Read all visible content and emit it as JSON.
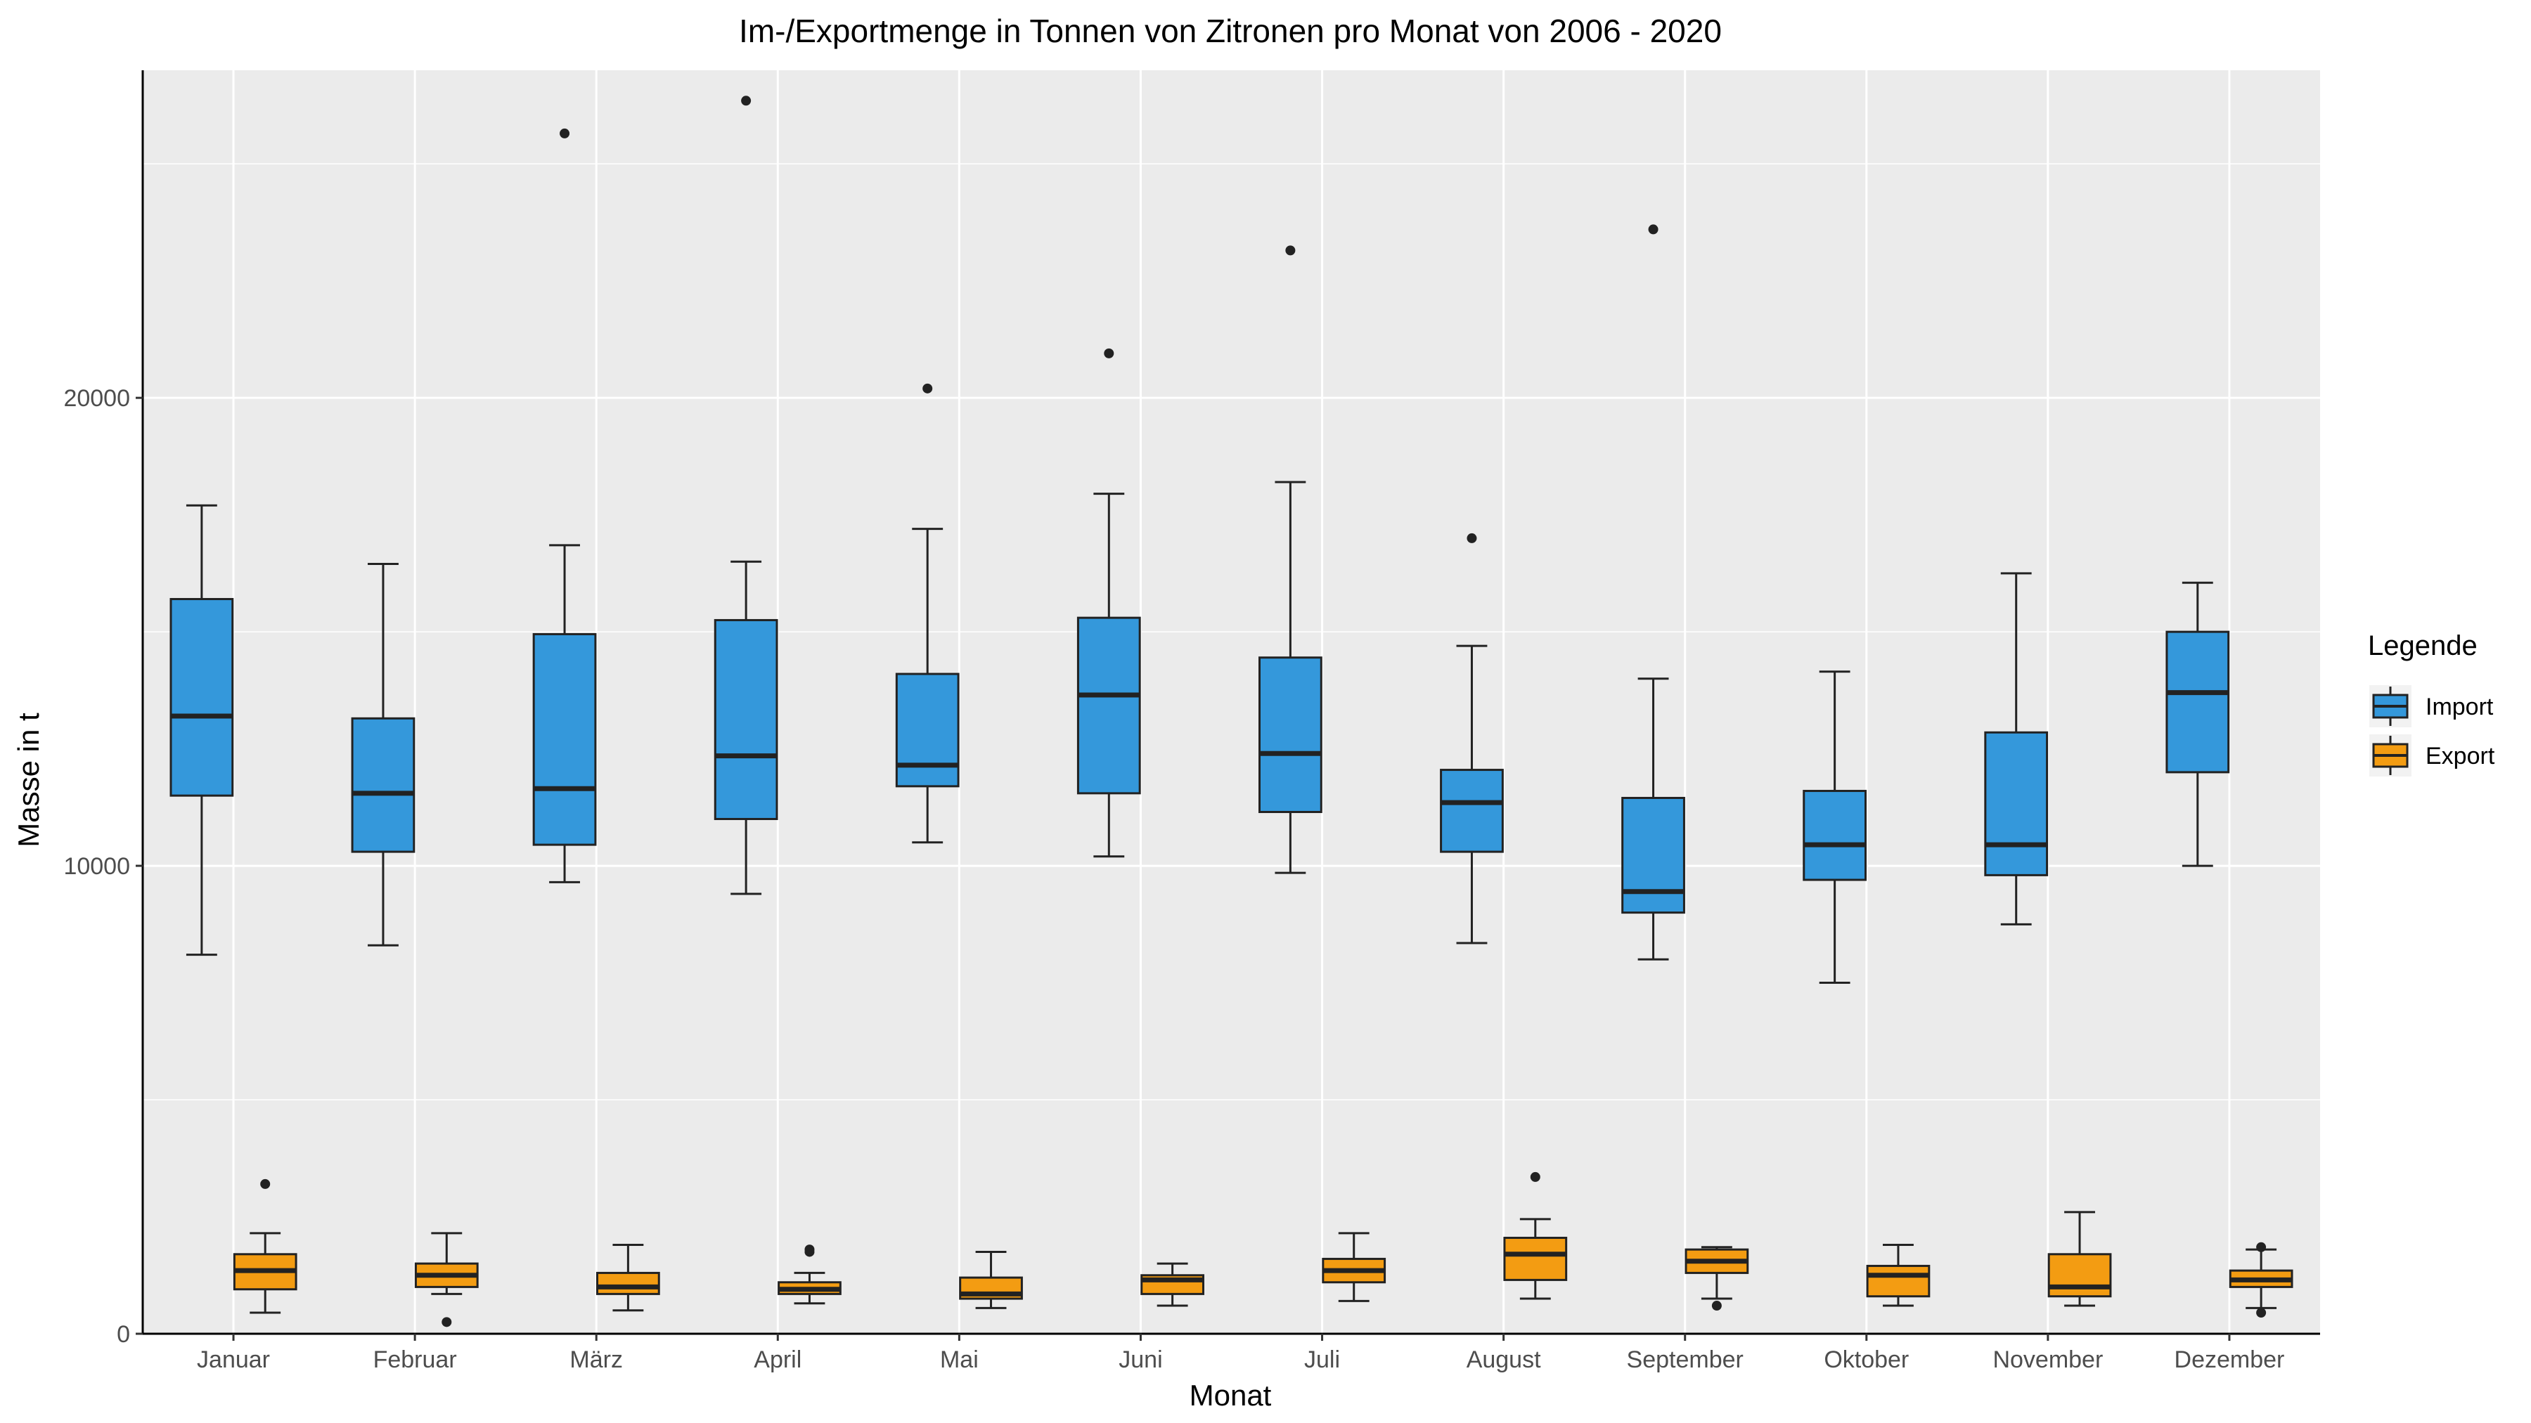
{
  "chart_data": {
    "type": "boxplot",
    "title": "Im-/Exportmenge in Tonnen von Zitronen pro Monat von 2006 - 2020",
    "xlabel": "Monat",
    "ylabel": "Masse in t",
    "ylim": [
      0,
      27000
    ],
    "y_ticks": [
      0,
      10000,
      20000
    ],
    "grid": true,
    "legend": {
      "title": "Legende",
      "position": "right"
    },
    "colors": {
      "Import": "#3498db",
      "Export": "#f39c12",
      "panel": "#ebebeb",
      "grid": "#ffffff"
    },
    "categories": [
      "Januar",
      "Februar",
      "März",
      "April",
      "Mai",
      "Juni",
      "Juli",
      "August",
      "September",
      "Oktober",
      "November",
      "Dezember"
    ],
    "series": [
      {
        "name": "Import",
        "boxes": [
          {
            "low": 8100,
            "q1": 11500,
            "median": 13200,
            "q3": 15700,
            "high": 17700,
            "outliers": []
          },
          {
            "low": 8300,
            "q1": 10300,
            "median": 11550,
            "q3": 13150,
            "high": 16450,
            "outliers": []
          },
          {
            "low": 9650,
            "q1": 10450,
            "median": 11650,
            "q3": 14950,
            "high": 16850,
            "outliers": [
              25650
            ]
          },
          {
            "low": 9400,
            "q1": 11000,
            "median": 12350,
            "q3": 15250,
            "high": 16500,
            "outliers": [
              26350
            ]
          },
          {
            "low": 10500,
            "q1": 11700,
            "median": 12150,
            "q3": 14100,
            "high": 17200,
            "outliers": [
              20200
            ]
          },
          {
            "low": 10200,
            "q1": 11550,
            "median": 13650,
            "q3": 15300,
            "high": 17950,
            "outliers": [
              20950
            ]
          },
          {
            "low": 9850,
            "q1": 11150,
            "median": 12400,
            "q3": 14450,
            "high": 18200,
            "outliers": [
              23150
            ]
          },
          {
            "low": 8350,
            "q1": 10300,
            "median": 11350,
            "q3": 12050,
            "high": 14700,
            "outliers": [
              17000
            ]
          },
          {
            "low": 8000,
            "q1": 9000,
            "median": 9450,
            "q3": 11450,
            "high": 14000,
            "outliers": [
              23600
            ]
          },
          {
            "low": 7500,
            "q1": 9700,
            "median": 10450,
            "q3": 11600,
            "high": 14150,
            "outliers": []
          },
          {
            "low": 8750,
            "q1": 9800,
            "median": 10450,
            "q3": 12850,
            "high": 16250,
            "outliers": []
          },
          {
            "low": 10000,
            "q1": 12000,
            "median": 13700,
            "q3": 15000,
            "high": 16050,
            "outliers": []
          }
        ]
      },
      {
        "name": "Export",
        "boxes": [
          {
            "low": 450,
            "q1": 950,
            "median": 1350,
            "q3": 1700,
            "high": 2150,
            "outliers": [
              3200
            ]
          },
          {
            "low": 850,
            "q1": 1000,
            "median": 1250,
            "q3": 1500,
            "high": 2150,
            "outliers": [
              250
            ]
          },
          {
            "low": 500,
            "q1": 850,
            "median": 1000,
            "q3": 1300,
            "high": 1900,
            "outliers": []
          },
          {
            "low": 650,
            "q1": 850,
            "median": 950,
            "q3": 1100,
            "high": 1300,
            "outliers": [
              1800,
              1750
            ]
          },
          {
            "low": 550,
            "q1": 750,
            "median": 850,
            "q3": 1200,
            "high": 1750,
            "outliers": []
          },
          {
            "low": 600,
            "q1": 850,
            "median": 1150,
            "q3": 1250,
            "high": 1500,
            "outliers": []
          },
          {
            "low": 700,
            "q1": 1100,
            "median": 1350,
            "q3": 1600,
            "high": 2150,
            "outliers": []
          },
          {
            "low": 750,
            "q1": 1150,
            "median": 1700,
            "q3": 2050,
            "high": 2450,
            "outliers": [
              3350
            ]
          },
          {
            "low": 750,
            "q1": 1300,
            "median": 1550,
            "q3": 1800,
            "high": 1850,
            "outliers": [
              600
            ]
          },
          {
            "low": 600,
            "q1": 800,
            "median": 1250,
            "q3": 1450,
            "high": 1900,
            "outliers": []
          },
          {
            "low": 600,
            "q1": 800,
            "median": 1000,
            "q3": 1700,
            "high": 2600,
            "outliers": []
          },
          {
            "low": 550,
            "q1": 1000,
            "median": 1150,
            "q3": 1350,
            "high": 1800,
            "outliers": [
              450,
              1850
            ]
          }
        ]
      }
    ]
  }
}
